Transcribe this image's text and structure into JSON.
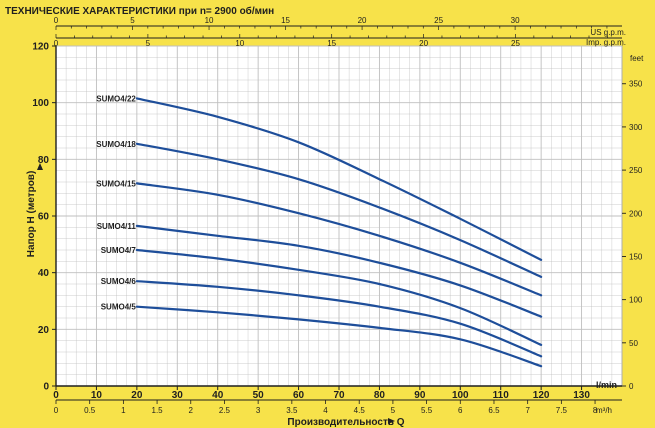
{
  "colors": {
    "background": "#F7E24A",
    "plot_background": "#FFFFFF",
    "grid": "#BFBFBF",
    "axis": "#1F1F1F",
    "curve": "#1E4E9A"
  },
  "chart_data": {
    "type": "line",
    "title": "ТЕХНИЧЕСКИЕ ХАРАКТЕРИСТИКИ при n= 2900 об/мин",
    "ylabel": "Напор Н  (метров)",
    "xlabel": "Производительность  Q",
    "xlim": [
      0,
      140
    ],
    "ylim": [
      0,
      120
    ],
    "grid": true,
    "x_ticks": [
      0,
      10,
      20,
      30,
      40,
      50,
      60,
      70,
      80,
      90,
      100,
      110,
      120,
      130
    ],
    "x_unit": "l/min",
    "y_ticks": [
      0,
      20,
      40,
      60,
      80,
      100,
      120
    ],
    "right_axis": {
      "unit": "feet",
      "ticks": [
        0,
        50,
        100,
        150,
        200,
        250,
        300,
        350
      ]
    },
    "top_axis_usgpm": {
      "unit": "US g.p.m.",
      "ticks": [
        0,
        5,
        10,
        15,
        20,
        25,
        30
      ]
    },
    "top_axis_impgpm": {
      "unit": "Imp. g.p.m.",
      "ticks": [
        0,
        5,
        10,
        15,
        20,
        25
      ]
    },
    "bottom_axis_m3h": {
      "unit": "m³/h",
      "ticks": [
        "0",
        "0.5",
        "1",
        "1.5",
        "2",
        "2.5",
        "3",
        "3.5",
        "4",
        "4.5",
        "5",
        "5.5",
        "6",
        "6.5",
        "7",
        "7.5",
        "8"
      ]
    },
    "series": [
      {
        "name": "SUMO4/22",
        "x": [
          20,
          40,
          60,
          80,
          100,
          120
        ],
        "y": [
          101.5,
          95,
          86,
          73,
          59,
          44.5
        ]
      },
      {
        "name": "SUMO4/18",
        "x": [
          20,
          40,
          60,
          80,
          100,
          120
        ],
        "y": [
          85.5,
          80,
          73,
          63,
          51.5,
          38.5
        ]
      },
      {
        "name": "SUMO4/15",
        "x": [
          20,
          40,
          60,
          80,
          100,
          120
        ],
        "y": [
          71.5,
          67.5,
          61,
          53,
          43.5,
          32
        ]
      },
      {
        "name": "SUMO4/11",
        "x": [
          20,
          40,
          60,
          80,
          100,
          120
        ],
        "y": [
          56.5,
          53,
          49.5,
          43.5,
          35.5,
          24.5
        ]
      },
      {
        "name": "SUMO4/7",
        "x": [
          20,
          40,
          60,
          80,
          100,
          120
        ],
        "y": [
          48,
          45,
          41,
          36,
          27.5,
          14.5
        ]
      },
      {
        "name": "SUMO4/6",
        "x": [
          20,
          40,
          60,
          80,
          100,
          120
        ],
        "y": [
          37,
          35,
          32,
          28,
          22,
          10.5
        ]
      },
      {
        "name": "SUMO4/5",
        "x": [
          20,
          40,
          60,
          80,
          100,
          120
        ],
        "y": [
          28,
          26,
          23.5,
          20.5,
          16.5,
          7
        ]
      }
    ]
  }
}
